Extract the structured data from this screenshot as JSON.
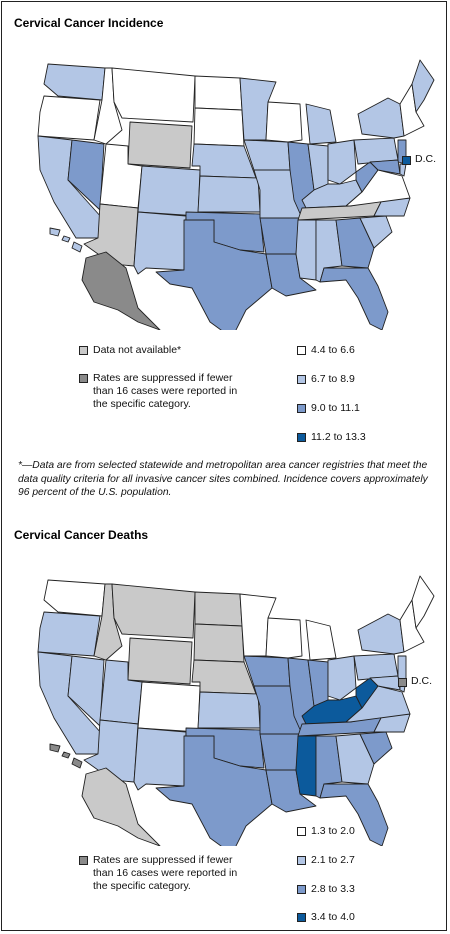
{
  "colors": {
    "white": "#ffffff",
    "light": "#b3c6e5",
    "medium": "#7d9acb",
    "dark": "#0c5a9c",
    "na": "#c9c9c9",
    "suppressed": "#8a8a8a",
    "border": "#222222"
  },
  "incidence": {
    "title": "Cervical Cancer Incidence",
    "dc_label": "D.C.",
    "legend_left": [
      {
        "label": "Data not available*",
        "color": "na"
      },
      {
        "label": "Rates are suppressed if fewer than 16 cases were reported in the specific category.",
        "color": "suppressed"
      }
    ],
    "legend_right": [
      {
        "label": "4.4 to 6.6",
        "color": "white"
      },
      {
        "label": "6.7 to 8.9",
        "color": "light"
      },
      {
        "label": "9.0 to 11.1",
        "color": "medium"
      },
      {
        "label": "11.2 to 13.3",
        "color": "dark"
      }
    ]
  },
  "footnote": "*—Data are from selected statewide and metropolitan area cancer registries that meet the data quality criteria for all invasive cancer sites combined. Incidence covers approximately 96 percent of the U.S. population.",
  "deaths": {
    "title": "Cervical Cancer Deaths",
    "dc_label": "D.C.",
    "legend_left": [
      {
        "label": "Rates are suppressed if fewer than 16 cases were reported in the specific category.",
        "color": "suppressed"
      }
    ],
    "legend_right": [
      {
        "label": "1.3 to 2.0",
        "color": "white"
      },
      {
        "label": "2.1 to 2.7",
        "color": "light"
      },
      {
        "label": "2.8 to 3.3",
        "color": "medium"
      },
      {
        "label": "3.4 to 4.0",
        "color": "dark"
      }
    ]
  },
  "state_classes": {
    "incidence": {
      "WA": "light",
      "OR": "white",
      "CA": "light",
      "NV": "medium",
      "ID": "white",
      "MT": "white",
      "WY": "na",
      "UT": "white",
      "AZ": "na",
      "CO": "light",
      "NM": "light",
      "ND": "white",
      "SD": "white",
      "NE": "light",
      "KS": "light",
      "OK": "medium",
      "TX": "medium",
      "MN": "light",
      "IA": "light",
      "MO": "light",
      "AR": "medium",
      "LA": "medium",
      "WI": "white",
      "IL": "medium",
      "MI": "light",
      "IN": "light",
      "OH": "light",
      "KY": "light",
      "TN": "na",
      "MS": "light",
      "AL": "light",
      "GA": "medium",
      "FL": "medium",
      "SC": "light",
      "NC": "light",
      "VA": "white",
      "WV": "medium",
      "PA": "light",
      "NY": "light",
      "ME": "light",
      "NE_STATES": "white",
      "NJ": "medium",
      "MD": "medium",
      "DE": "light",
      "AK": "suppressed",
      "HI": "light"
    },
    "deaths": {
      "WA": "white",
      "OR": "light",
      "CA": "light",
      "NV": "light",
      "ID": "na",
      "MT": "na",
      "WY": "na",
      "UT": "light",
      "AZ": "light",
      "CO": "white",
      "NM": "light",
      "ND": "na",
      "SD": "na",
      "NE": "na",
      "KS": "light",
      "OK": "medium",
      "TX": "medium",
      "MN": "white",
      "IA": "medium",
      "MO": "medium",
      "AR": "medium",
      "LA": "medium",
      "WI": "white",
      "IL": "medium",
      "MI": "white",
      "IN": "medium",
      "OH": "light",
      "KY": "dark",
      "TN": "medium",
      "MS": "dark",
      "AL": "medium",
      "GA": "light",
      "FL": "medium",
      "SC": "medium",
      "NC": "light",
      "VA": "light",
      "WV": "dark",
      "PA": "light",
      "NY": "light",
      "ME": "white",
      "NE_STATES": "white",
      "NJ": "light",
      "MD": "light",
      "DE": "light",
      "AK": "na",
      "HI": "suppressed"
    }
  }
}
